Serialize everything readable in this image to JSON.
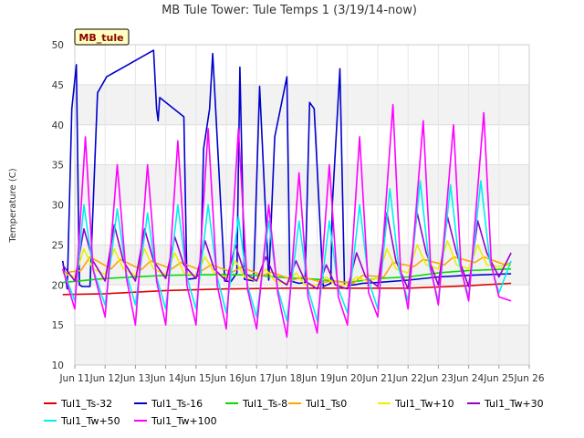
{
  "chart_data": {
    "type": "line",
    "title": "MB Tule Tower: Tule Temps 1 (3/19/14-now)",
    "site_label": "MB_tule",
    "xlabel": "",
    "ylabel": "Temperature (C)",
    "xlim": [
      11,
      26
    ],
    "ylim": [
      10,
      50
    ],
    "x_ticks": [
      11,
      12,
      13,
      14,
      15,
      16,
      17,
      18,
      19,
      20,
      21,
      22,
      23,
      24,
      25,
      26
    ],
    "x_tick_labels": [
      "Jun 11",
      "Jun 12",
      "Jun 13",
      "Jun 14",
      "Jun 15",
      "Jun 16",
      "Jun 17",
      "Jun 18",
      "Jun 19",
      "Jun 20",
      "Jun 21",
      "Jun 22",
      "Jun 23",
      "Jun 24",
      "Jun 25",
      "Jun 26"
    ],
    "y_ticks": [
      10,
      15,
      20,
      25,
      30,
      35,
      40,
      45,
      50
    ],
    "grid": true,
    "legend_position": "bottom",
    "series": [
      {
        "name": "Tul1_Ts-32",
        "color": "#dd0000",
        "x": [
          10.6,
          12,
          14,
          16,
          18,
          20,
          22,
          24,
          25.4
        ],
        "values": [
          18.8,
          18.9,
          19.3,
          19.5,
          19.6,
          19.6,
          19.6,
          19.9,
          20.2
        ]
      },
      {
        "name": "Tul1_Ts-16",
        "color": "#0000cc",
        "x": [
          10.6,
          10.75,
          10.9,
          11.05,
          11.15,
          11.25,
          11.5,
          11.75,
          12.05,
          13.6,
          13.7,
          13.75,
          13.8,
          14.6,
          14.7,
          14.95,
          15.15,
          15.25,
          15.45,
          15.55,
          15.95,
          16.15,
          16.35,
          16.45,
          16.6,
          16.9,
          17.1,
          17.4,
          17.6,
          18.0,
          18.1,
          18.4,
          18.6,
          18.75,
          18.9,
          19.2,
          19.45,
          19.5,
          19.75,
          19.9,
          20.05,
          20.2,
          20.5,
          21,
          22,
          23,
          24,
          25.4
        ],
        "values": [
          23,
          19.5,
          42,
          47.5,
          20,
          19.8,
          19.8,
          44,
          46,
          49.3,
          42,
          40.5,
          43.4,
          41,
          20.7,
          20.8,
          21.5,
          37,
          42,
          48.9,
          20.5,
          20.4,
          21.5,
          47.2,
          20.7,
          20.5,
          44.8,
          20.6,
          38.5,
          46,
          20.5,
          20.2,
          20.3,
          42.8,
          42,
          19.8,
          20.2,
          30,
          47,
          20,
          20,
          20,
          20.2,
          20.3,
          20.6,
          21.0,
          21.2,
          21.4
        ]
      },
      {
        "name": "Tul1_Ts-8",
        "color": "#00dd00",
        "x": [
          10.6,
          12,
          14,
          16,
          17,
          18,
          19,
          20,
          21,
          22,
          23,
          24,
          25.4
        ],
        "values": [
          20.3,
          20.8,
          21.2,
          21.3,
          21.2,
          20.9,
          20.7,
          20.3,
          20.8,
          21.0,
          21.5,
          21.8,
          22.0
        ]
      },
      {
        "name": "Tul1_Ts0",
        "color": "#ffa500",
        "x": [
          10.6,
          11.2,
          11.5,
          12.2,
          12.5,
          13.2,
          13.5,
          14.2,
          14.5,
          15.2,
          15.5,
          16.2,
          16.5,
          17.2,
          17.5,
          18.2,
          18.5,
          19.2,
          19.5,
          20.2,
          20.5,
          21.2,
          21.5,
          22.2,
          22.5,
          23.2,
          23.5,
          24.2,
          24.5,
          25.2,
          25.4
        ],
        "values": [
          21.5,
          21.8,
          23.5,
          22.0,
          23.2,
          21.9,
          23.0,
          22.0,
          22.8,
          21.8,
          22.5,
          21.6,
          22.2,
          21.2,
          21.6,
          20.6,
          21.0,
          20.3,
          20.5,
          20.2,
          21.2,
          21.0,
          22.8,
          22.3,
          23.2,
          22.5,
          23.5,
          22.8,
          23.5,
          22.5,
          22.8
        ]
      },
      {
        "name": "Tul1_Tw+10",
        "color": "#eeee00",
        "x": [
          10.6,
          11.0,
          11.3,
          11.6,
          12.0,
          12.3,
          12.6,
          13.0,
          13.3,
          13.6,
          14.0,
          14.3,
          14.6,
          15.0,
          15.3,
          15.6,
          16.0,
          16.3,
          16.6,
          17.0,
          17.3,
          17.6,
          18.0,
          18.3,
          18.6,
          19.0,
          19.3,
          19.6,
          20.0,
          20.3,
          20.6,
          21.0,
          21.3,
          21.6,
          22.0,
          22.3,
          22.6,
          23.0,
          23.3,
          23.6,
          24.0,
          24.3,
          24.6,
          25.0,
          25.4
        ],
        "values": [
          21.5,
          21.0,
          24.5,
          22.0,
          21.3,
          24.5,
          22.0,
          21.2,
          24.5,
          22.0,
          21.3,
          24.0,
          21.5,
          21.2,
          23.5,
          21.5,
          21.0,
          23.0,
          21.0,
          20.5,
          22.0,
          20.5,
          20.2,
          21.5,
          20.0,
          20.0,
          21.0,
          20.0,
          20.0,
          21.0,
          20.5,
          20.8,
          24.5,
          22.0,
          21.5,
          25.0,
          22.5,
          22.0,
          25.5,
          22.5,
          22.0,
          25.0,
          22.5,
          22.3,
          22.5
        ]
      },
      {
        "name": "Tul1_Tw+30",
        "color": "#9900cc",
        "x": [
          10.6,
          11.0,
          11.3,
          11.6,
          12.0,
          12.3,
          12.6,
          13.0,
          13.3,
          13.6,
          14.0,
          14.3,
          14.6,
          15.0,
          15.3,
          15.6,
          16.0,
          16.3,
          16.6,
          17.0,
          17.3,
          17.6,
          18.0,
          18.3,
          18.6,
          19.0,
          19.3,
          19.6,
          20.0,
          20.3,
          20.6,
          21.0,
          21.3,
          21.6,
          22.0,
          22.3,
          22.6,
          23.0,
          23.3,
          23.6,
          24.0,
          24.3,
          24.6,
          25.0,
          25.4
        ],
        "values": [
          22.5,
          20.5,
          27.0,
          23.0,
          20.5,
          27.5,
          23.0,
          20.5,
          27.0,
          23.0,
          20.8,
          26.0,
          22.5,
          20.8,
          25.5,
          22.0,
          20.5,
          25.0,
          21.5,
          20.5,
          23.5,
          21.0,
          20.0,
          23.0,
          20.5,
          19.5,
          22.5,
          20.0,
          19.5,
          24.0,
          21.0,
          19.8,
          29.0,
          23.0,
          19.5,
          29.0,
          24.0,
          20.0,
          28.5,
          24.0,
          19.8,
          28.0,
          24.0,
          21.0,
          24.0
        ]
      },
      {
        "name": "Tul1_Tw+50",
        "color": "#00eeee",
        "x": [
          10.6,
          11.0,
          11.3,
          11.6,
          12.0,
          12.4,
          12.7,
          13.0,
          13.4,
          13.7,
          14.0,
          14.4,
          14.7,
          15.0,
          15.4,
          15.7,
          16.0,
          16.4,
          16.7,
          17.0,
          17.4,
          17.7,
          18.0,
          18.4,
          18.7,
          19.0,
          19.4,
          19.7,
          20.0,
          20.4,
          20.7,
          21.0,
          21.4,
          21.7,
          22.0,
          22.4,
          22.7,
          23.0,
          23.4,
          23.7,
          24.0,
          24.4,
          24.7,
          25.0,
          25.4
        ],
        "values": [
          22.0,
          18.0,
          30.0,
          22.0,
          17.5,
          29.5,
          21.5,
          17.5,
          29.0,
          21.0,
          17.0,
          30.0,
          21.0,
          17.0,
          30.0,
          21.0,
          16.5,
          28.5,
          20.0,
          16.0,
          28.0,
          19.5,
          15.5,
          28.0,
          19.5,
          15.5,
          28.0,
          19.5,
          16.5,
          30.0,
          20.5,
          17.0,
          32.0,
          22.0,
          18.0,
          33.0,
          22.5,
          18.0,
          32.5,
          22.5,
          18.5,
          33.0,
          23.0,
          19.0,
          23.0
        ]
      },
      {
        "name": "Tul1_Tw+100",
        "color": "#ff00ff",
        "x": [
          10.6,
          11.0,
          11.35,
          11.6,
          12.0,
          12.4,
          12.7,
          13.0,
          13.4,
          13.7,
          14.0,
          14.4,
          14.7,
          15.0,
          15.4,
          15.7,
          16.0,
          16.4,
          16.7,
          17.0,
          17.4,
          17.7,
          18.0,
          18.4,
          18.7,
          19.0,
          19.4,
          19.7,
          20.0,
          20.4,
          20.7,
          21.0,
          21.5,
          21.75,
          22.0,
          22.5,
          22.75,
          23.0,
          23.5,
          23.75,
          24.0,
          24.5,
          24.75,
          25.0,
          25.4
        ],
        "values": [
          22.0,
          17.0,
          38.5,
          22.0,
          16.0,
          35.0,
          21.0,
          15.0,
          35.0,
          20.5,
          15.0,
          38.0,
          20.0,
          15.0,
          39.5,
          20.0,
          14.5,
          39.5,
          19.5,
          14.5,
          30.0,
          19.0,
          13.5,
          34.0,
          18.5,
          14.0,
          35.0,
          18.5,
          15.0,
          38.5,
          19.0,
          16.0,
          42.5,
          22.0,
          17.0,
          40.5,
          22.0,
          17.5,
          40.0,
          22.0,
          18.0,
          41.5,
          22.5,
          18.5,
          18.0
        ]
      }
    ]
  }
}
